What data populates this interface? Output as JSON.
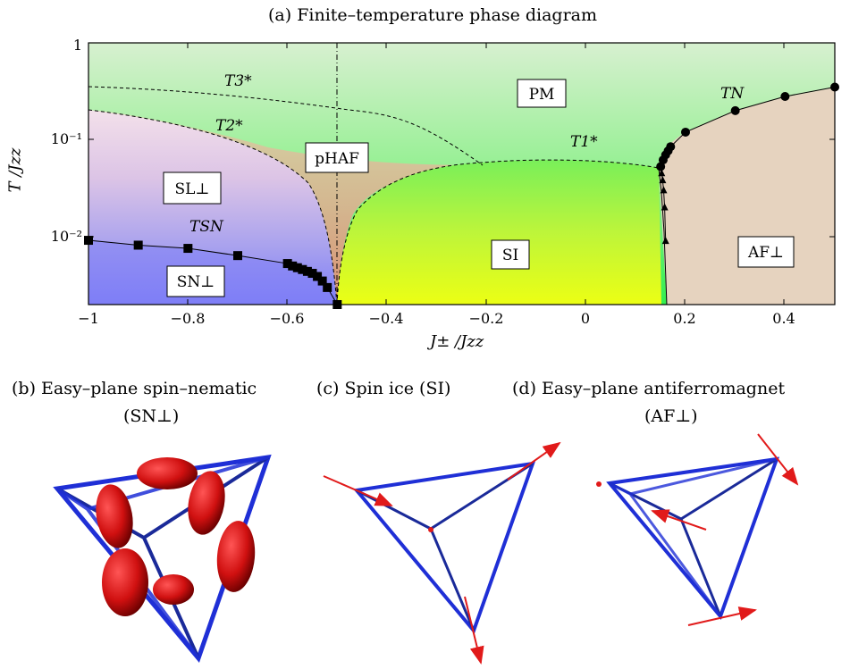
{
  "panel_a": {
    "title": "(a) Finite–temperature phase diagram",
    "xlabel": "J± /Jzz",
    "ylabel": "T /Jzz",
    "x_ticks": [
      "−1",
      "−0.8",
      "−0.6",
      "−0.4",
      "−0.2",
      "0",
      "0.2",
      "0.4"
    ],
    "y_ticks": [
      "10⁻²",
      "10⁻¹",
      "1"
    ],
    "regions": {
      "pm": "PM",
      "phaf": "pHAF",
      "sl": "SL⊥",
      "sn": "SN⊥",
      "si": "SI",
      "af": "AF⊥"
    },
    "curve_labels": {
      "t3": "T3*",
      "t2": "T2*",
      "t1": "T1*",
      "tsn": "TSN",
      "tn": "TN"
    }
  },
  "panel_b": {
    "title": "(b) Easy–plane spin–nematic",
    "subtitle": "(SN⊥)"
  },
  "panel_c": {
    "title": "(c) Spin ice (SI)"
  },
  "panel_d": {
    "title": "(d) Easy–plane antiferromagnet",
    "subtitle": "(AF⊥)"
  },
  "colors": {
    "pm": "#3df05a",
    "sn": "#7f7ff8",
    "si": "#e8ff1a",
    "af": "#e8d3bd",
    "phaf": "#ea8a78",
    "edge": "#1f2fd6",
    "arrow": "#e11a1a"
  },
  "chart_data": {
    "type": "scatter",
    "xlim": [
      -1,
      0.5
    ],
    "ylim": [
      0.002,
      1
    ],
    "y_scale": "log",
    "series": [
      {
        "marker": "square",
        "x": [
          -1.0,
          -0.9,
          -0.8,
          -0.7,
          -0.6,
          -0.59,
          -0.58,
          -0.57,
          -0.56,
          -0.55,
          -0.54,
          -0.53,
          -0.52,
          -0.5
        ],
        "y": [
          0.0092,
          0.0082,
          0.0076,
          0.0064,
          0.0053,
          0.005,
          0.0048,
          0.0046,
          0.0044,
          0.0042,
          0.0039,
          0.0035,
          0.003,
          0.002
        ]
      },
      {
        "marker": "circle",
        "x": [
          0.15,
          0.155,
          0.16,
          0.165,
          0.17,
          0.2,
          0.3,
          0.4,
          0.5
        ],
        "y": [
          0.053,
          0.062,
          0.07,
          0.077,
          0.085,
          0.12,
          0.2,
          0.28,
          0.35
        ]
      },
      {
        "marker": "triangle",
        "x": [
          0.152,
          0.154,
          0.156,
          0.158,
          0.16
        ],
        "y": [
          0.045,
          0.038,
          0.03,
          0.02,
          0.009
        ]
      }
    ]
  }
}
